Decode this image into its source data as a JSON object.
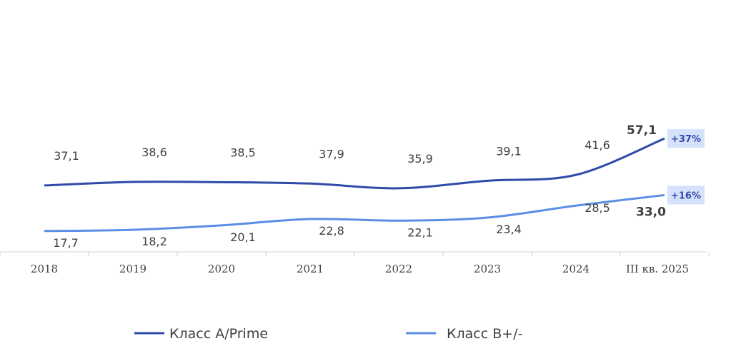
{
  "chart_data": {
    "type": "line",
    "categories": [
      "2018",
      "2019",
      "2020",
      "2021",
      "2022",
      "2023",
      "2024",
      "III кв. 2025"
    ],
    "series": [
      {
        "name": "Класс А/Prime",
        "values": [
          37.1,
          38.6,
          38.5,
          37.9,
          35.9,
          39.1,
          41.6,
          57.1
        ],
        "labels": [
          "37,1",
          "38,6",
          "38,5",
          "37,9",
          "35,9",
          "39,1",
          "41,6",
          "57,1"
        ],
        "color": "#2f4aa8",
        "change_badge": "+37%"
      },
      {
        "name": "Класс В+/-",
        "values": [
          17.7,
          18.2,
          20.1,
          22.8,
          22.1,
          23.4,
          28.5,
          33.0
        ],
        "labels": [
          "17,7",
          "18,2",
          "20,1",
          "22,8",
          "22,1",
          "23,4",
          "28,5",
          "33,0"
        ],
        "color": "#5b8fe6",
        "change_badge": "+16%"
      }
    ],
    "badge_color": "#d6e2fb",
    "badge_text_color": "#2f4aa8",
    "legend_position": "bottom",
    "grid": false,
    "ylim": [
      0,
      70
    ]
  }
}
